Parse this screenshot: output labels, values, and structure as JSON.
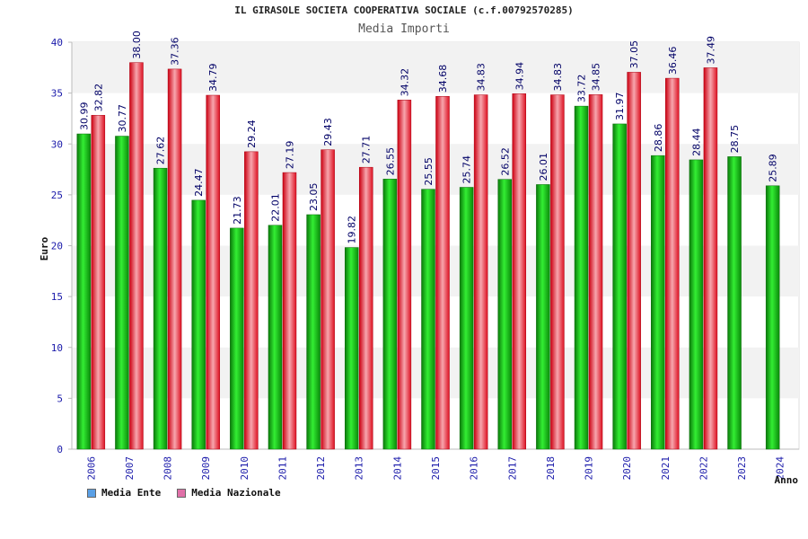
{
  "chart_data": {
    "type": "bar",
    "title": "IL GIRASOLE SOCIETA COOPERATIVA SOCIALE (c.f.00792570285)",
    "subtitle": "Media Importi",
    "xlabel": "Anno",
    "ylabel": "Euro",
    "ylim": [
      0,
      40
    ],
    "yticks": [
      0,
      5,
      10,
      15,
      20,
      25,
      30,
      35,
      40
    ],
    "grid": true,
    "legend_position": "bottom-left",
    "categories": [
      "2006",
      "2007",
      "2008",
      "2009",
      "2010",
      "2011",
      "2012",
      "2013",
      "2014",
      "2015",
      "2016",
      "2017",
      "2018",
      "2019",
      "2020",
      "2021",
      "2022",
      "2023",
      "2024"
    ],
    "series": [
      {
        "name": "Media Ente",
        "color": "#22bb22",
        "values": [
          30.99,
          30.77,
          27.62,
          24.47,
          21.73,
          22.01,
          23.05,
          19.82,
          26.55,
          25.55,
          25.74,
          26.52,
          26.01,
          33.72,
          31.97,
          28.86,
          28.44,
          28.75,
          25.89
        ],
        "labels": [
          "30.99",
          "30.77",
          "27.62",
          "24.47",
          "21.73",
          "22.01",
          "23.05",
          "19.82",
          "26.55",
          "25.55",
          "25.74",
          "26.52",
          "26.01",
          "33.72",
          "31.97",
          "28.86",
          "28.44",
          "28.75",
          "25.89"
        ]
      },
      {
        "name": "Media Nazionale",
        "color": "#ee2233",
        "values": [
          32.82,
          38.0,
          37.36,
          34.79,
          29.24,
          27.19,
          29.43,
          27.71,
          34.32,
          34.68,
          34.83,
          34.94,
          34.83,
          34.85,
          37.05,
          36.46,
          37.49,
          null,
          null
        ],
        "labels": [
          "32.82",
          "38.00",
          "37.36",
          "34.79",
          "29.24",
          "27.19",
          "29.43",
          "27.71",
          "34.32",
          "34.68",
          "34.83",
          "34.94",
          "34.83",
          "34.85",
          "37.05",
          "36.46",
          "37.49",
          null,
          null
        ]
      }
    ],
    "legend": [
      {
        "label": "Media Ente",
        "color": "#5aa0e6"
      },
      {
        "label": "Media Nazionale",
        "color": "#e070a8"
      }
    ]
  }
}
